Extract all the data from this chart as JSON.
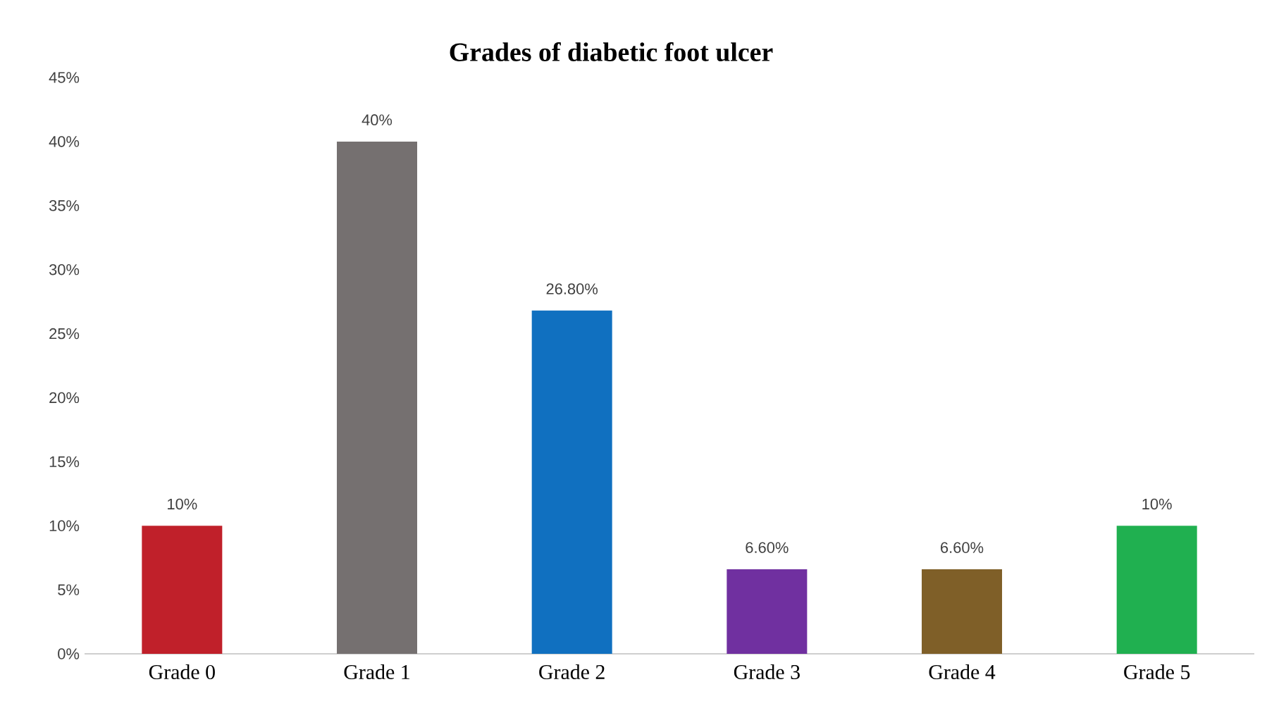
{
  "chart_data": {
    "type": "bar",
    "title": "Grades of diabetic foot ulcer",
    "categories": [
      "Grade 0",
      "Grade 1",
      "Grade 2",
      "Grade 3",
      "Grade 4",
      "Grade 5"
    ],
    "values": [
      10,
      40,
      26.8,
      6.6,
      6.6,
      10
    ],
    "colors": [
      "#c0202a",
      "#757070",
      "#1070c0",
      "#7030a0",
      "#7f5f28",
      "#20b050"
    ],
    "value_labels": [
      "10%",
      "40%",
      "26.80%",
      "6.60%",
      "6.60%",
      "10%"
    ],
    "ylim": [
      0,
      45
    ],
    "yticks": [
      {
        "value": 0,
        "label": "0%"
      },
      {
        "value": 5,
        "label": "5%"
      },
      {
        "value": 10,
        "label": "10%"
      },
      {
        "value": 15,
        "label": "15%"
      },
      {
        "value": 20,
        "label": "20%"
      },
      {
        "value": 25,
        "label": "25%"
      },
      {
        "value": 30,
        "label": "30%"
      },
      {
        "value": 35,
        "label": "35%"
      },
      {
        "value": 40,
        "label": "40%"
      },
      {
        "value": 45,
        "label": "45%"
      }
    ],
    "grid": false
  }
}
